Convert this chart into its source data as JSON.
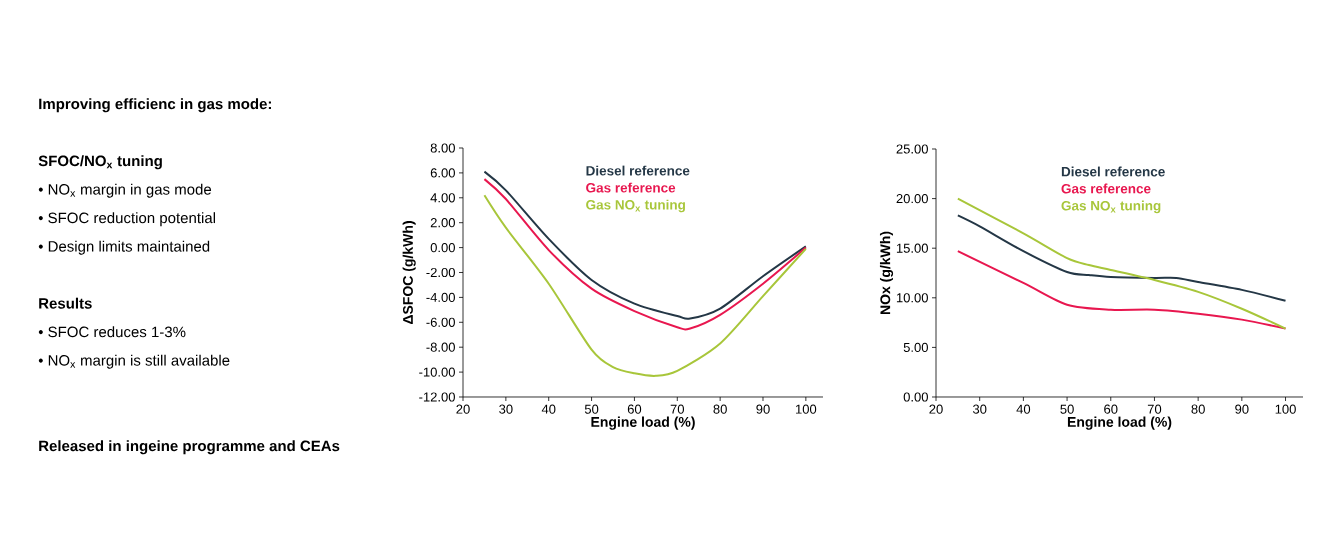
{
  "chart_data": [
    {
      "type": "other",
      "title": "Improving efficienc in gas mode:",
      "annotations": [
        "SFOC/NO$_{x}$ tuning",
        "• NO$_{x}$ margin in gas mode",
        "• SFOC reduction potential",
        "• Design limits maintained",
        "Results",
        "• SFOC reduces 1-3%",
        "• NO$_{x}$ margin is still available",
        "Released in ingeine programme and CEAs"
      ]
    },
    {
      "type": "line",
      "xlabel": "Engine load (%)",
      "ylabel": "ΔSFOC (g/kWh)",
      "xlim": [
        20,
        104
      ],
      "ylim": [
        -12,
        8
      ],
      "xticks": [
        20,
        30,
        40,
        50,
        60,
        70,
        80,
        90,
        100
      ],
      "yticks": [
        {
          "value": -12,
          "label": "-12.00"
        },
        {
          "value": -10,
          "label": "-10.00"
        },
        {
          "value": -8,
          "label": "-8.00"
        },
        {
          "value": -6,
          "label": "-6.00"
        },
        {
          "value": -4,
          "label": "-4.00"
        },
        {
          "value": -2,
          "label": "-2.00"
        },
        {
          "value": 0,
          "label": "0.00"
        },
        {
          "value": 2,
          "label": "2.00"
        },
        {
          "value": 4,
          "label": "4.00"
        },
        {
          "value": 6,
          "label": "6.00"
        },
        {
          "value": 8,
          "label": "8.00"
        }
      ],
      "legend": "top",
      "marker": "none",
      "line_style": "solid",
      "series": [
        {
          "name": "Diesel reference",
          "color": "#243746",
          "x": [
            25,
            30,
            40,
            50,
            60,
            70,
            73,
            80,
            90,
            100
          ],
          "values": [
            6.1,
            4.6,
            0.7,
            -2.6,
            -4.5,
            -5.5,
            -5.7,
            -4.9,
            -2.3,
            0.1
          ]
        },
        {
          "name": "Gas reference",
          "color": "#e8174f",
          "x": [
            25,
            30,
            40,
            50,
            60,
            70,
            73,
            80,
            90,
            100
          ],
          "values": [
            5.5,
            3.9,
            -0.2,
            -3.3,
            -5.1,
            -6.4,
            -6.5,
            -5.4,
            -2.9,
            0
          ]
        },
        {
          "name": "Gas NO$_{x}$ tuning",
          "color": "#a8c63a",
          "x": [
            25,
            30,
            40,
            50,
            55,
            60,
            65,
            70,
            80,
            90,
            100
          ],
          "values": [
            4.2,
            1.6,
            -2.9,
            -8.2,
            -9.6,
            -10.1,
            -10.3,
            -9.9,
            -7.7,
            -3.9,
            -0.1
          ]
        }
      ]
    },
    {
      "type": "line",
      "xlabel": "Engine load (%)",
      "ylabel": "NOx (g/kWh)",
      "xlim": [
        20,
        104
      ],
      "ylim": [
        0,
        25
      ],
      "xticks": [
        20,
        30,
        40,
        50,
        60,
        70,
        80,
        90,
        100
      ],
      "yticks": [
        {
          "value": 0,
          "label": "0.00"
        },
        {
          "value": 5,
          "label": "5.00"
        },
        {
          "value": 10,
          "label": "10.00"
        },
        {
          "value": 15,
          "label": "15.00"
        },
        {
          "value": 20,
          "label": "20.00"
        },
        {
          "value": 25,
          "label": "25.00"
        }
      ],
      "legend": "top",
      "marker": "none",
      "line_style": "solid",
      "series": [
        {
          "name": "Diesel reference",
          "color": "#243746",
          "x": [
            25,
            30,
            40,
            50,
            55,
            60,
            70,
            75,
            80,
            90,
            100
          ],
          "values": [
            18.3,
            17.2,
            14.7,
            12.6,
            12.3,
            12.1,
            12.0,
            12.0,
            11.6,
            10.8,
            9.7
          ]
        },
        {
          "name": "Gas reference",
          "color": "#e8174f",
          "x": [
            25,
            40,
            50,
            60,
            70,
            80,
            90,
            100
          ],
          "values": [
            14.7,
            11.5,
            9.3,
            8.8,
            8.8,
            8.4,
            7.8,
            6.9
          ]
        },
        {
          "name": "Gas NO$_{x}$ tuning",
          "color": "#a8c63a",
          "x": [
            25,
            40,
            50,
            55,
            60,
            70,
            80,
            90,
            100
          ],
          "values": [
            20.0,
            16.5,
            14.0,
            13.3,
            12.8,
            11.8,
            10.6,
            8.9,
            6.9
          ]
        }
      ]
    }
  ]
}
